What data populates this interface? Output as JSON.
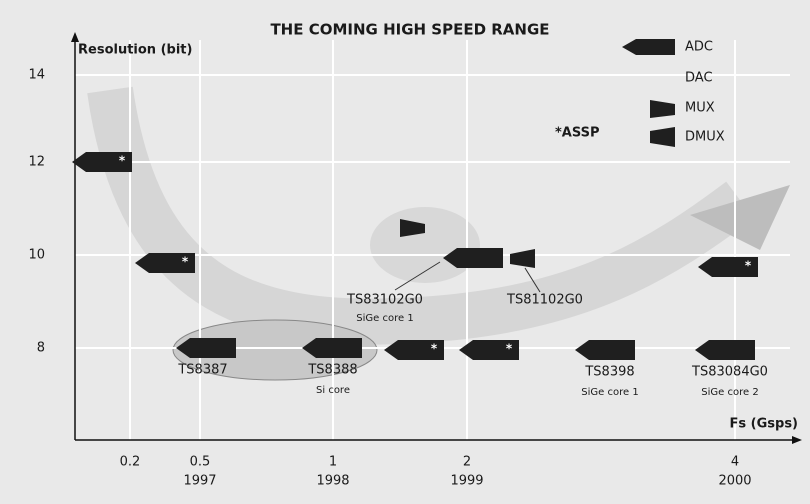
{
  "header": {
    "title": "THE COMING HIGH SPEED RANGE"
  },
  "axes": {
    "y_label": "Resolution (bit)",
    "x_label": "Fs (Gsps)",
    "y_ticks": [
      "14",
      "12",
      "10",
      "8"
    ],
    "x_ticks": [
      {
        "top": "0.2",
        "bottom": null
      },
      {
        "top": "0.5",
        "bottom": "1997"
      },
      {
        "top": "1",
        "bottom": "1998"
      },
      {
        "top": "2",
        "bottom": "1999"
      },
      {
        "top": "4",
        "bottom": "2000"
      }
    ]
  },
  "legend": [
    "ADC",
    "DAC",
    "MUX",
    "DMUX"
  ],
  "assp_note": "*ASSP",
  "assp_mark": "*",
  "products": [
    {
      "name": "TS8387",
      "note": null
    },
    {
      "name": "TS8388",
      "note": "Si core"
    },
    {
      "name": "TS8398",
      "note": "SiGe core 1"
    },
    {
      "name": "TS83084G0",
      "note": "SiGe core 2"
    },
    {
      "name": "TS83102G0",
      "note": "SiGe core 1"
    },
    {
      "name": "TS81102G0",
      "note": null
    }
  ]
}
